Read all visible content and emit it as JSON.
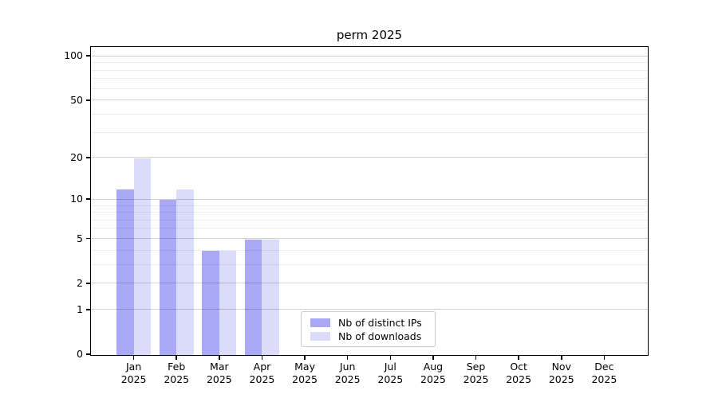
{
  "chart_data": {
    "type": "bar",
    "title": "perm 2025",
    "categories": [
      "Jan\n2025",
      "Feb\n2025",
      "Mar\n2025",
      "Apr\n2025",
      "May\n2025",
      "Jun\n2025",
      "Jul\n2025",
      "Aug\n2025",
      "Sep\n2025",
      "Oct\n2025",
      "Nov\n2025",
      "Dec\n2025"
    ],
    "series": [
      {
        "name": "Nb of distinct IPs",
        "color": "#a9a9f8",
        "values": [
          12,
          10,
          4,
          5,
          0,
          0,
          0,
          0,
          0,
          0,
          0,
          0
        ]
      },
      {
        "name": "Nb of downloads",
        "color": "#dbdbfa",
        "values": [
          20,
          12,
          4,
          5,
          0,
          0,
          0,
          0,
          0,
          0,
          0,
          0
        ]
      }
    ],
    "xlabel": "",
    "ylabel": "",
    "yscale": "log1p",
    "ylim": [
      0,
      115
    ],
    "yticks": [
      0,
      1,
      2,
      5,
      10,
      20,
      50,
      100
    ],
    "minor_yticks": [
      3,
      4,
      6,
      7,
      8,
      9,
      30,
      40,
      60,
      70,
      80,
      90
    ],
    "grid": "horizontal",
    "legend_position": "lower center"
  },
  "legend": {
    "items": [
      {
        "label": "Nb of distinct IPs",
        "color": "#a9a9f8",
        "swatch": "dark-purple-swatch"
      },
      {
        "label": "Nb of downloads",
        "color": "#dbdbfa",
        "swatch": "light-lavender-swatch"
      }
    ]
  },
  "colors": {
    "distinct_ips": "#a9a9f8",
    "downloads": "#dbdbfa",
    "spine": "#000000",
    "major_grid": "rgba(0,0,0,0.18)",
    "minor_grid": "rgba(0,0,0,0.065)",
    "legend_border": "#cccccc"
  }
}
